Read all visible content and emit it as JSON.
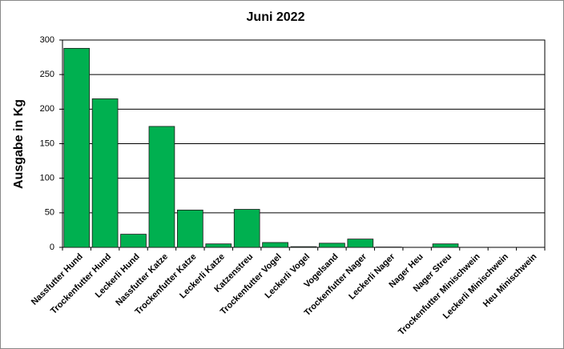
{
  "chart_data": {
    "type": "bar",
    "title": "Juni 2022",
    "y_label": "Ausgabe in Kg",
    "categories": [
      "Nassfutter Hund",
      "Trockenfutter Hund",
      "Leckerli Hund",
      "Nassfutter Katze",
      "Trockenfutter Katze",
      "Leckerli Katze",
      "Katzenstreu",
      "Trockenfutter Vogel",
      "Leckerli Vogel",
      "Vogelsand",
      "Trockenfutter Nager",
      "Leckerli Nager",
      "Nager Heu",
      "Nager Streu",
      "Trockenfutter Minischwein",
      "Leckerli Minischwein",
      "Heu Minischwein"
    ],
    "values": [
      288,
      215,
      19,
      175,
      54,
      5,
      55,
      7,
      1,
      6,
      12,
      0.5,
      0,
      5,
      0,
      0,
      0
    ],
    "color": "#00b050",
    "ylim": [
      0,
      300
    ],
    "yticks": [
      0,
      50,
      100,
      150,
      200,
      250,
      300
    ],
    "grid": true
  }
}
